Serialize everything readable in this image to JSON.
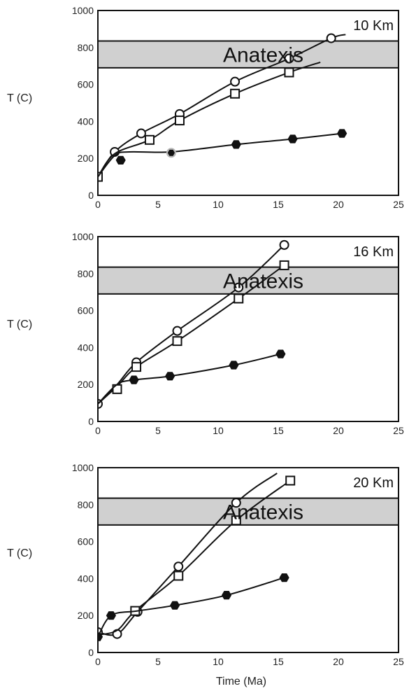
{
  "chart_data": [
    {
      "type": "line",
      "depth_label": "10 Km",
      "band_label": "Anatexis",
      "band_range": [
        690,
        835
      ],
      "ylabel": "T (C)",
      "xlabel": "",
      "xlim": [
        0,
        25
      ],
      "ylim": [
        0,
        1000
      ],
      "xticks": [
        "0",
        "5",
        "10",
        "15",
        "20",
        "25"
      ],
      "yticks": [
        "0",
        "200",
        "400",
        "600",
        "800",
        "1000"
      ],
      "series": [
        {
          "marker": "circle",
          "x": [
            0,
            1.4,
            3.6,
            6.8,
            11.4,
            15.9,
            19.4
          ],
          "y": [
            100,
            235,
            335,
            440,
            615,
            740,
            850
          ],
          "curve_x": [
            0,
            1.4,
            3.6,
            6.8,
            11.4,
            15.9,
            19.4,
            20.6
          ],
          "curve_y": [
            100,
            235,
            335,
            440,
            615,
            740,
            850,
            870
          ]
        },
        {
          "marker": "square",
          "x": [
            0,
            4.3,
            6.8,
            11.4,
            15.9
          ],
          "y": [
            100,
            300,
            405,
            550,
            665
          ],
          "curve_x": [
            0,
            1.4,
            4.3,
            6.8,
            11.4,
            15.9,
            18.5
          ],
          "curve_y": [
            100,
            225,
            300,
            405,
            550,
            665,
            720
          ]
        },
        {
          "marker": "hexagon",
          "x": [
            1.9,
            6.1,
            11.5,
            16.2,
            20.3
          ],
          "y": [
            190,
            230,
            275,
            305,
            335
          ],
          "curve_x": [
            0,
            1.4,
            2.6,
            6.1,
            11.5,
            16.2,
            20.3
          ],
          "curve_y": [
            100,
            215,
            235,
            235,
            275,
            305,
            335
          ],
          "highlight_index": 1
        }
      ]
    },
    {
      "type": "line",
      "depth_label": "16 Km",
      "band_label": "Anatexis",
      "band_range": [
        690,
        835
      ],
      "ylabel": "T (C)",
      "xlabel": "",
      "xlim": [
        0,
        25
      ],
      "ylim": [
        0,
        1000
      ],
      "xticks": [
        "0",
        "5",
        "10",
        "15",
        "20",
        "25"
      ],
      "yticks": [
        "0",
        "200",
        "400",
        "600",
        "800",
        "1000"
      ],
      "series": [
        {
          "marker": "circle",
          "x": [
            0,
            3.2,
            6.6,
            11.7,
            15.5
          ],
          "y": [
            95,
            320,
            490,
            725,
            955
          ],
          "curve_x": [
            0,
            1.6,
            3.2,
            6.6,
            11.7,
            15.5
          ],
          "curve_y": [
            95,
            200,
            320,
            490,
            725,
            955
          ]
        },
        {
          "marker": "square",
          "x": [
            1.6,
            3.2,
            6.6,
            11.7,
            15.5
          ],
          "y": [
            175,
            295,
            435,
            665,
            845
          ],
          "curve_x": [
            0,
            1.6,
            3.2,
            6.6,
            11.7,
            15.5
          ],
          "curve_y": [
            95,
            190,
            295,
            435,
            665,
            845
          ]
        },
        {
          "marker": "hexagon",
          "x": [
            3.0,
            6.0,
            11.3,
            15.2
          ],
          "y": [
            225,
            245,
            305,
            365
          ],
          "curve_x": [
            0,
            1.6,
            3.0,
            6.0,
            11.3,
            15.2
          ],
          "curve_y": [
            95,
            200,
            225,
            245,
            305,
            365
          ]
        }
      ]
    },
    {
      "type": "line",
      "depth_label": "20 Km",
      "band_label": "Anatexis",
      "band_range": [
        690,
        835
      ],
      "ylabel": "T (C)",
      "xlabel": "Time (Ma)",
      "xlim": [
        0,
        25
      ],
      "ylim": [
        0,
        1000
      ],
      "xticks": [
        "0",
        "5",
        "10",
        "15",
        "20",
        "25"
      ],
      "yticks": [
        "0",
        "200",
        "400",
        "600",
        "800",
        "1000"
      ],
      "series": [
        {
          "marker": "circle",
          "x": [
            0,
            1.6,
            3.3,
            6.7,
            11.5
          ],
          "y": [
            110,
            100,
            220,
            465,
            810
          ],
          "curve_x": [
            0,
            1.6,
            3.3,
            6.7,
            11.5,
            14.9
          ],
          "curve_y": [
            110,
            100,
            220,
            465,
            810,
            970
          ]
        },
        {
          "marker": "square",
          "x": [
            3.1,
            6.7,
            11.5,
            16.0
          ],
          "y": [
            225,
            415,
            715,
            930
          ],
          "curve_x": [
            0,
            1.6,
            3.1,
            6.7,
            11.5,
            16.0
          ],
          "curve_y": [
            95,
            120,
            225,
            415,
            715,
            930
          ]
        },
        {
          "marker": "hexagon",
          "x": [
            0,
            1.1,
            6.4,
            10.7,
            15.5
          ],
          "y": [
            85,
            200,
            255,
            310,
            405
          ],
          "curve_x": [
            0,
            1.1,
            3.3,
            6.4,
            10.7,
            15.5
          ],
          "curve_y": [
            85,
            200,
            225,
            255,
            310,
            405
          ]
        }
      ]
    }
  ]
}
